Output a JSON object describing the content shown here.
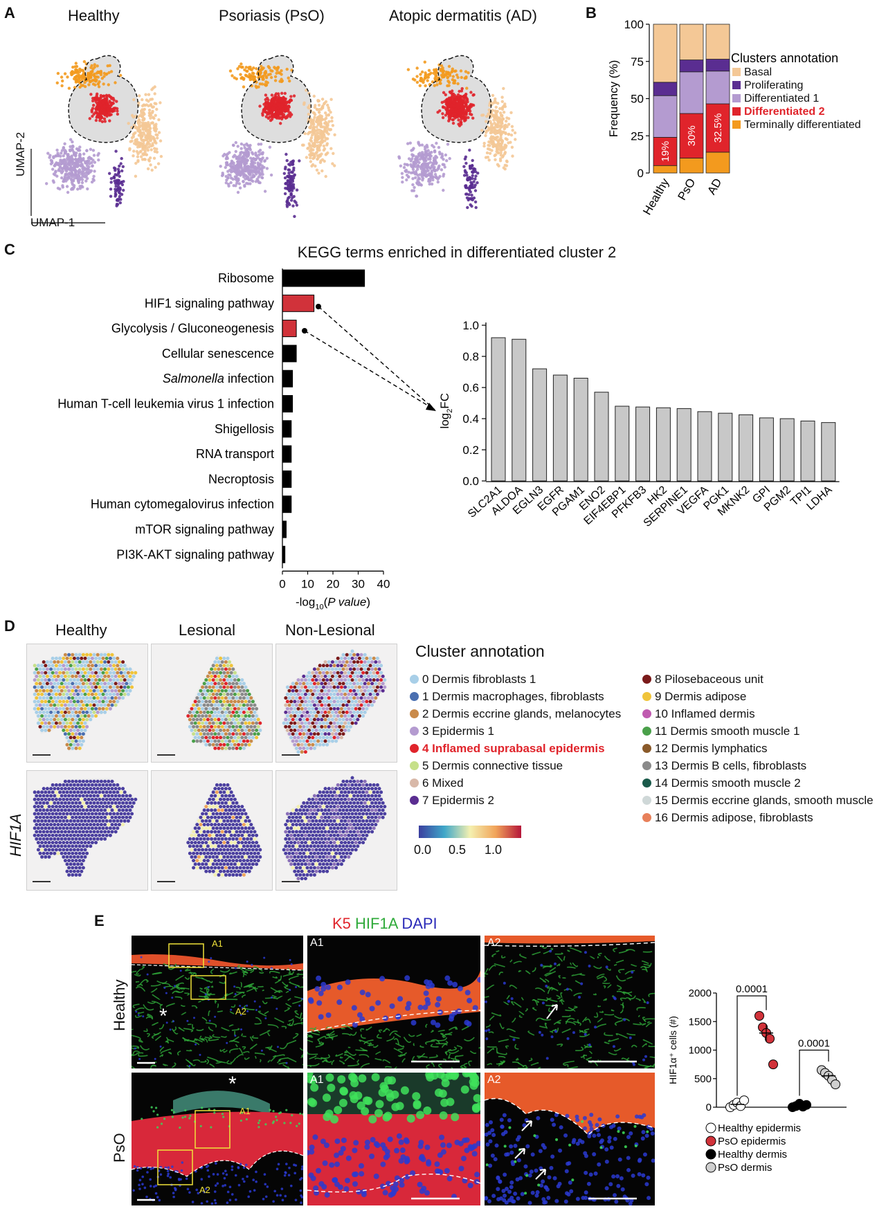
{
  "panel_labels": {
    "a": "A",
    "b": "B",
    "c": "C",
    "d": "D",
    "e": "E"
  },
  "panel_a": {
    "conditions": [
      "Healthy",
      "Psoriasis (PsO)",
      "Atopic dermatitis (AD)"
    ],
    "axis_y": "UMAP-2",
    "axis_x": "UMAP-1"
  },
  "colors": {
    "basal": "#f4c896",
    "proliferating": "#5a2d91",
    "diff1": "#b49bd0",
    "diff2": "#e0242b",
    "terminal": "#f39a1e",
    "black_bar": "#000000",
    "red_bar": "#d1323a",
    "grey_bar": "#c8c8c8"
  },
  "chart_data": [
    {
      "id": "B",
      "type": "bar",
      "stacked": true,
      "categories": [
        "Healthy",
        "PsO",
        "AD"
      ],
      "series": [
        {
          "name": "Terminally differentiated",
          "values": [
            5,
            10,
            14
          ]
        },
        {
          "name": "Differentiated 2",
          "values": [
            19,
            30,
            32.5
          ]
        },
        {
          "name": "Differentiated 1",
          "values": [
            28,
            28,
            22
          ]
        },
        {
          "name": "Proliferating",
          "values": [
            9,
            8,
            8
          ]
        },
        {
          "name": "Basal",
          "values": [
            39,
            24,
            23.5
          ]
        }
      ],
      "bar_labels": [
        "19%",
        "30%",
        "32.5%"
      ],
      "ylabel": "Frequency (%)",
      "ylim": [
        0,
        100
      ],
      "yticks": [
        0,
        25,
        50,
        75,
        100
      ],
      "legend_title": "Clusters annotation",
      "legend": [
        "Basal",
        "Proliferating",
        "Differentiated 1",
        "Differentiated 2",
        "Terminally differentiated"
      ],
      "highlight": "Differentiated 2"
    },
    {
      "id": "C-left",
      "type": "bar",
      "orientation": "horizontal",
      "title": "KEGG terms enriched in differentiated cluster 2",
      "categories": [
        "Ribosome",
        "HIF1 signaling pathway",
        "Glycolysis / Gluconeogenesis",
        "Cellular senescence",
        "Salmonella infection",
        "Human T-cell leukemia virus 1 infection",
        "Shigellosis",
        "RNA transport",
        "Necroptosis",
        "Human cytomegalovirus infection",
        "mTOR signaling pathway",
        "PI3K-AKT signaling pathway"
      ],
      "italic_word": "Salmonella",
      "values": [
        32.5,
        12.5,
        5.5,
        5.5,
        4,
        4,
        3.5,
        3.5,
        3.5,
        3.5,
        1.5,
        1
      ],
      "highlighted": [
        "HIF1 signaling pathway",
        "Glycolysis / Gluconeogenesis"
      ],
      "xlim": [
        0,
        40
      ],
      "xticks": [
        0,
        10,
        20,
        30,
        40
      ],
      "xlabel_parts": [
        "-log",
        "10",
        "(",
        "P value",
        ")"
      ]
    },
    {
      "id": "C-right",
      "type": "bar",
      "categories": [
        "SLC2A1",
        "ALDOA",
        "EGLN3",
        "EGFR",
        "PGAM1",
        "ENO2",
        "EIF4EBP1",
        "PFKFB3",
        "HK2",
        "SERPINE1",
        "VEGFA",
        "PGK1",
        "MKNK2",
        "GPI",
        "PGM2",
        "TPI1",
        "LDHA"
      ],
      "values": [
        0.92,
        0.91,
        0.72,
        0.68,
        0.66,
        0.57,
        0.48,
        0.475,
        0.47,
        0.465,
        0.445,
        0.435,
        0.425,
        0.405,
        0.4,
        0.385,
        0.375
      ],
      "ylabel_parts": [
        "log",
        "2",
        "FC"
      ],
      "ylim": [
        0,
        1.0
      ],
      "yticks": [
        "0.0",
        "0.2",
        "0.4",
        "0.6",
        "0.8",
        "1.0"
      ]
    },
    {
      "id": "E-scatter",
      "type": "scatter",
      "ylabel": "HIF1α⁺ cells (#)",
      "ylim": [
        0,
        2000
      ],
      "yticks": [
        0,
        500,
        1000,
        1500,
        2000
      ],
      "groups": [
        {
          "name": "Healthy epidermis",
          "values": [
            0,
            40,
            80,
            20,
            120
          ],
          "mean": 50,
          "sem": 20,
          "fill": "#ffffff"
        },
        {
          "name": "PsO epidermis",
          "values": [
            1600,
            1400,
            1300,
            1200,
            750
          ],
          "mean": 1300,
          "sem": 140,
          "fill": "#d1323a"
        },
        {
          "name": "Healthy dermis",
          "values": [
            0,
            20,
            60,
            10,
            40
          ],
          "mean": 25,
          "sem": 10,
          "fill": "#000000"
        },
        {
          "name": "PsO dermis",
          "values": [
            650,
            600,
            550,
            480,
            400
          ],
          "mean": 550,
          "sem": 45,
          "fill": "#cfcfcf"
        }
      ],
      "comparisons": [
        {
          "groups": [
            "Healthy epidermis",
            "PsO epidermis"
          ],
          "p": "0.0001"
        },
        {
          "groups": [
            "Healthy dermis",
            "PsO dermis"
          ],
          "p": "0.0001"
        }
      ]
    }
  ],
  "panel_d": {
    "columns": [
      "Healthy",
      "Lesional",
      "Non-Lesional"
    ],
    "row_label": "HIF1A",
    "legend_title": "Cluster annotation",
    "clusters_left": [
      {
        "label": "0 Dermis fibroblasts 1",
        "color": "#a8cfe8"
      },
      {
        "label": "1 Dermis macrophages, fibroblasts",
        "color": "#4a6fb0"
      },
      {
        "label": "2 Dermis eccrine glands, melanocytes",
        "color": "#c98a4a"
      },
      {
        "label": "3 Epidermis 1",
        "color": "#b49bd0"
      },
      {
        "label": "4 Inflamed suprabasal epidermis",
        "color": "#e0242b"
      },
      {
        "label": "5 Dermis connective tissue",
        "color": "#c6e08a"
      },
      {
        "label": "6 Mixed",
        "color": "#d8b8a8"
      },
      {
        "label": "7 Epidermis 2",
        "color": "#5a2d91"
      }
    ],
    "clusters_right": [
      {
        "label": "8 Pilosebaceous unit",
        "color": "#7a1a1a"
      },
      {
        "label": "9 Dermis adipose",
        "color": "#f0c43a"
      },
      {
        "label": "10 Inflamed dermis",
        "color": "#c05ab0"
      },
      {
        "label": "11 Dermis smooth muscle 1",
        "color": "#4aa04a"
      },
      {
        "label": "12 Dermis lymphatics",
        "color": "#8a5a2a"
      },
      {
        "label": "13 Dermis B cells, fibroblasts",
        "color": "#8a8a8a"
      },
      {
        "label": "14 Dermis smooth muscle 2",
        "color": "#1a5a4a"
      },
      {
        "label": "15 Dermis eccrine glands, smooth muscle",
        "color": "#cfd8d8"
      },
      {
        "label": "16 Dermis adipose, fibroblasts",
        "color": "#e8805a"
      }
    ],
    "highlight_index": 4,
    "colorbar_ticks": [
      "0.0",
      "0.5",
      "1.0"
    ]
  },
  "panel_e": {
    "stain_k5": "K5",
    "stain_hif": "HIF1A",
    "stain_dapi": "DAPI",
    "rows": [
      "Healthy",
      "PsO"
    ],
    "inset_labels": [
      "A1",
      "A2"
    ],
    "asterisk": "*"
  }
}
